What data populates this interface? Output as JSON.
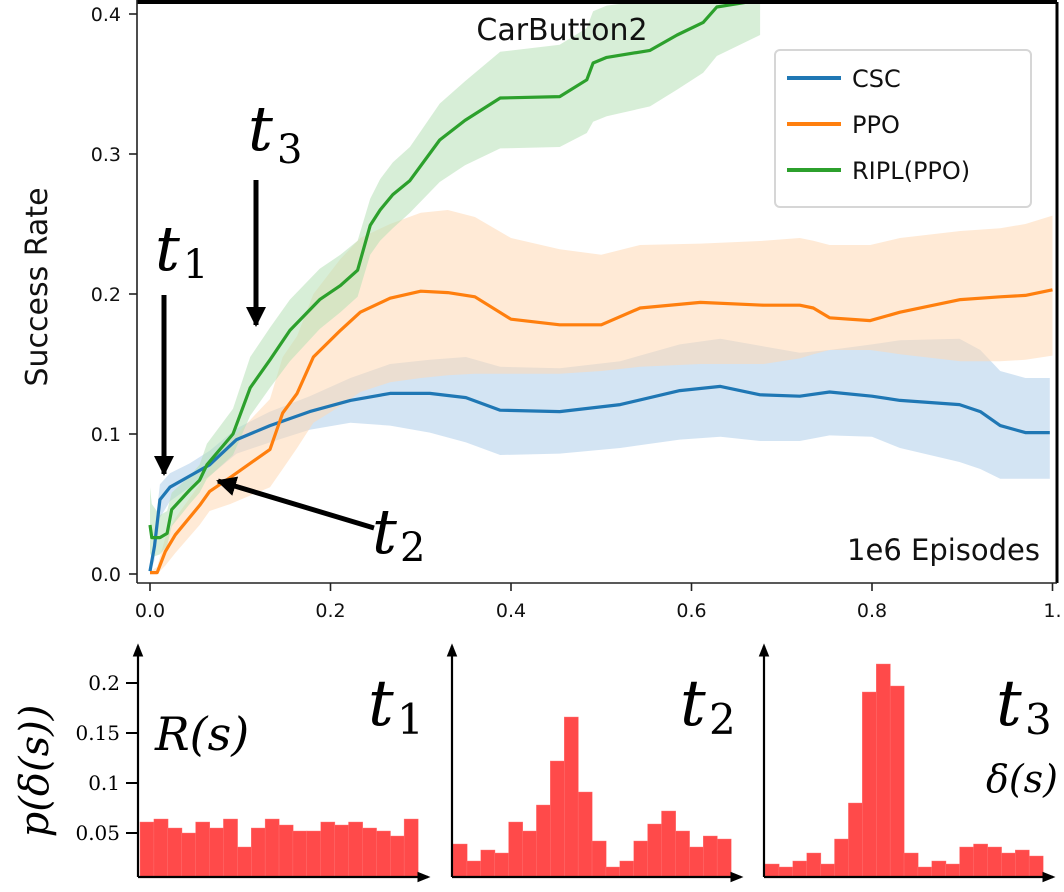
{
  "chart_data": [
    {
      "type": "line",
      "title": "CarButton2",
      "xlabel": "1e6 Episodes",
      "ylabel": "Success Rate",
      "xlim": [
        -0.008,
        1.005
      ],
      "ylim": [
        -0.006,
        0.407
      ],
      "xticks": [
        0.0,
        0.2,
        0.4,
        0.6,
        0.8,
        1.0
      ],
      "xtick_labels": [
        "0.0",
        "0.2",
        "0.4",
        "0.6",
        "0.8",
        "1."
      ],
      "yticks": [
        0.0,
        0.1,
        0.2,
        0.3,
        0.4
      ],
      "ytick_labels": [
        "0.0",
        "0.1",
        "0.2",
        "0.3",
        "0.4"
      ],
      "grid": false,
      "legend_position": "top-right",
      "series": [
        {
          "name": "CSC",
          "color": "#1f77b4",
          "band_color": "#aecde9",
          "x": [
            0.0,
            0.005,
            0.011,
            0.022,
            0.044,
            0.066,
            0.096,
            0.133,
            0.177,
            0.222,
            0.266,
            0.31,
            0.35,
            0.388,
            0.454,
            0.521,
            0.587,
            0.632,
            0.676,
            0.72,
            0.753,
            0.8,
            0.831,
            0.897,
            0.92,
            0.942,
            0.97,
            0.997
          ],
          "mean": [
            0.002,
            0.02,
            0.053,
            0.062,
            0.07,
            0.078,
            0.096,
            0.106,
            0.116,
            0.124,
            0.129,
            0.129,
            0.126,
            0.117,
            0.116,
            0.121,
            0.131,
            0.134,
            0.128,
            0.127,
            0.13,
            0.127,
            0.124,
            0.121,
            0.116,
            0.106,
            0.101,
            0.101
          ],
          "lower": [
            0.0,
            0.01,
            0.04,
            0.052,
            0.062,
            0.07,
            0.086,
            0.094,
            0.103,
            0.108,
            0.106,
            0.101,
            0.094,
            0.085,
            0.086,
            0.09,
            0.096,
            0.098,
            0.095,
            0.095,
            0.099,
            0.098,
            0.09,
            0.08,
            0.075,
            0.068,
            0.068,
            0.068
          ],
          "upper": [
            0.004,
            0.03,
            0.064,
            0.072,
            0.079,
            0.088,
            0.104,
            0.116,
            0.127,
            0.14,
            0.15,
            0.153,
            0.155,
            0.148,
            0.147,
            0.152,
            0.164,
            0.168,
            0.163,
            0.158,
            0.16,
            0.164,
            0.167,
            0.168,
            0.16,
            0.145,
            0.14,
            0.14
          ]
        },
        {
          "name": "PPO",
          "color": "#ff7f0e",
          "band_color": "#ffd8b5",
          "x": [
            0.0,
            0.008,
            0.017,
            0.028,
            0.055,
            0.066,
            0.089,
            0.133,
            0.147,
            0.163,
            0.181,
            0.211,
            0.233,
            0.266,
            0.3,
            0.33,
            0.36,
            0.4,
            0.454,
            0.5,
            0.543,
            0.61,
            0.68,
            0.72,
            0.735,
            0.753,
            0.798,
            0.831,
            0.898,
            0.942,
            0.97,
            1.0
          ],
          "mean": [
            0.001,
            0.001,
            0.016,
            0.028,
            0.049,
            0.059,
            0.069,
            0.089,
            0.115,
            0.129,
            0.155,
            0.174,
            0.187,
            0.197,
            0.202,
            0.201,
            0.198,
            0.182,
            0.178,
            0.178,
            0.19,
            0.194,
            0.192,
            0.192,
            0.19,
            0.183,
            0.181,
            0.187,
            0.196,
            0.198,
            0.199,
            0.203
          ],
          "lower": [
            0.0,
            0.0,
            0.006,
            0.015,
            0.035,
            0.045,
            0.05,
            0.062,
            0.075,
            0.09,
            0.108,
            0.12,
            0.13,
            0.137,
            0.14,
            0.142,
            0.143,
            0.143,
            0.143,
            0.145,
            0.148,
            0.15,
            0.15,
            0.154,
            0.157,
            0.16,
            0.16,
            0.157,
            0.152,
            0.152,
            0.153,
            0.156
          ],
          "upper": [
            0.002,
            0.005,
            0.026,
            0.04,
            0.064,
            0.075,
            0.095,
            0.125,
            0.155,
            0.17,
            0.2,
            0.225,
            0.24,
            0.25,
            0.258,
            0.26,
            0.255,
            0.24,
            0.232,
            0.228,
            0.235,
            0.236,
            0.238,
            0.24,
            0.238,
            0.235,
            0.235,
            0.24,
            0.245,
            0.247,
            0.25,
            0.256
          ]
        },
        {
          "name": "RIPL(PPO)",
          "color": "#2ca02c",
          "band_color": "#b7e0b7",
          "x": [
            0.0,
            0.002,
            0.011,
            0.019,
            0.024,
            0.044,
            0.055,
            0.063,
            0.092,
            0.111,
            0.133,
            0.155,
            0.188,
            0.211,
            0.23,
            0.244,
            0.255,
            0.269,
            0.288,
            0.321,
            0.349,
            0.388,
            0.454,
            0.484,
            0.491,
            0.506,
            0.554,
            0.584,
            0.613,
            0.628,
            0.676
          ],
          "mean": [
            0.035,
            0.026,
            0.026,
            0.029,
            0.046,
            0.06,
            0.067,
            0.078,
            0.1,
            0.133,
            0.153,
            0.174,
            0.196,
            0.206,
            0.217,
            0.249,
            0.26,
            0.271,
            0.281,
            0.31,
            0.324,
            0.34,
            0.341,
            0.353,
            0.365,
            0.369,
            0.374,
            0.385,
            0.394,
            0.405,
            0.41
          ],
          "lower": [
            0.015,
            0.012,
            0.014,
            0.02,
            0.034,
            0.05,
            0.058,
            0.068,
            0.085,
            0.113,
            0.133,
            0.152,
            0.175,
            0.187,
            0.198,
            0.228,
            0.238,
            0.247,
            0.258,
            0.28,
            0.292,
            0.304,
            0.305,
            0.315,
            0.323,
            0.327,
            0.334,
            0.346,
            0.358,
            0.37,
            0.385
          ],
          "upper": [
            0.062,
            0.05,
            0.042,
            0.045,
            0.058,
            0.07,
            0.078,
            0.093,
            0.118,
            0.155,
            0.176,
            0.196,
            0.218,
            0.228,
            0.238,
            0.268,
            0.282,
            0.294,
            0.305,
            0.336,
            0.352,
            0.373,
            0.378,
            0.39,
            0.402,
            0.406,
            0.41,
            0.41,
            0.41,
            0.41,
            0.41
          ]
        }
      ],
      "annotations": [
        {
          "label": "t",
          "sub": "1",
          "arrow": "down",
          "points_to": {
            "x": 0.015,
            "y": 0.065
          }
        },
        {
          "label": "t",
          "sub": "2",
          "arrow": "left-up",
          "points_to": {
            "x": 0.06,
            "y": 0.068
          }
        },
        {
          "label": "t",
          "sub": "3",
          "arrow": "down",
          "points_to": {
            "x": 0.12,
            "y": 0.168
          }
        }
      ]
    },
    {
      "type": "bar",
      "title": "t1",
      "panel_label": {
        "main": "t",
        "sub": "1"
      },
      "inner_label": "R(s)",
      "ylabel": "p(δ(s))",
      "xlabel": "",
      "yticks": [
        0.05,
        0.1,
        0.15,
        0.2
      ],
      "ytick_labels": [
        "0.05",
        "0.1",
        "0.15",
        "0.2"
      ],
      "ylim": [
        0,
        0.235
      ],
      "bins": 20,
      "color": "#ff4a4a",
      "values": [
        0.061,
        0.064,
        0.055,
        0.05,
        0.061,
        0.055,
        0.064,
        0.036,
        0.055,
        0.064,
        0.058,
        0.052,
        0.052,
        0.061,
        0.058,
        0.061,
        0.055,
        0.052,
        0.047,
        0.064
      ]
    },
    {
      "type": "bar",
      "title": "t2",
      "panel_label": {
        "main": "t",
        "sub": "2"
      },
      "ylim": [
        0,
        0.235
      ],
      "bins": 20,
      "color": "#ff4a4a",
      "values": [
        0.039,
        0.022,
        0.033,
        0.03,
        0.061,
        0.052,
        0.078,
        0.122,
        0.166,
        0.091,
        0.042,
        0.016,
        0.022,
        0.042,
        0.059,
        0.072,
        0.052,
        0.036,
        0.047,
        0.044
      ]
    },
    {
      "type": "bar",
      "title": "t3",
      "panel_label": {
        "main": "t",
        "sub": "3"
      },
      "xlabel": "δ(s)",
      "ylim": [
        0,
        0.235
      ],
      "bins": 20,
      "color": "#ff4a4a",
      "values": [
        0.019,
        0.016,
        0.022,
        0.03,
        0.019,
        0.044,
        0.08,
        0.191,
        0.219,
        0.197,
        0.03,
        0.016,
        0.022,
        0.019,
        0.036,
        0.039,
        0.036,
        0.03,
        0.033,
        0.027
      ]
    }
  ]
}
